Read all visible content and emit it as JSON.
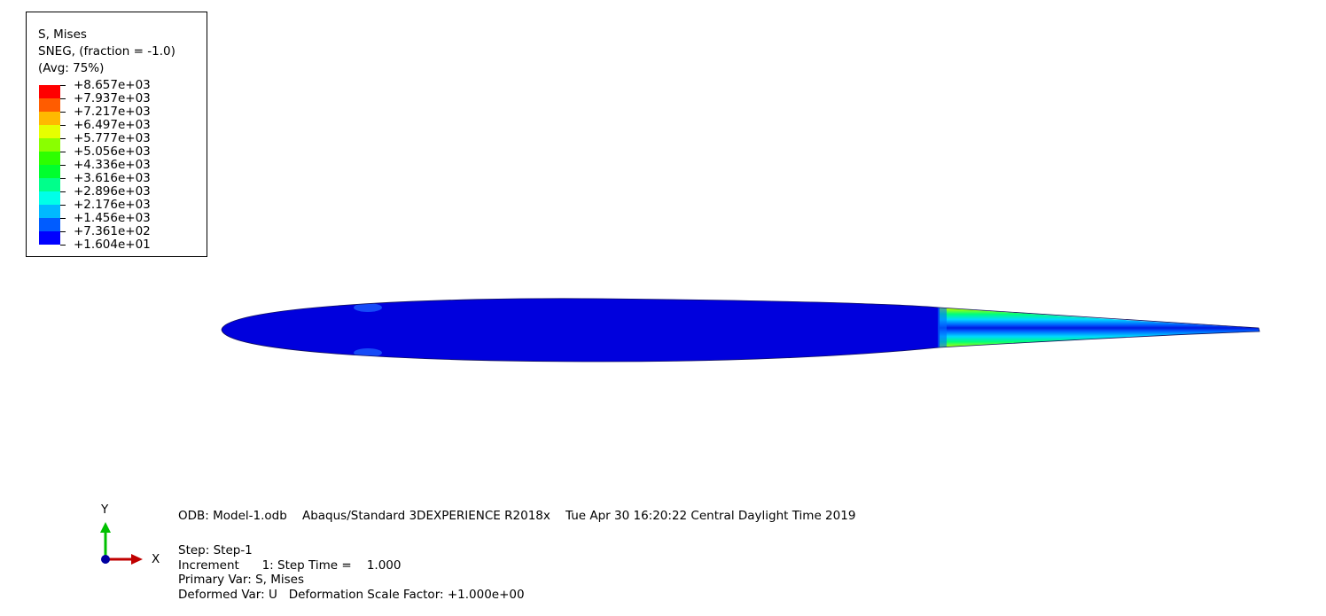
{
  "legend": {
    "title_lines": [
      "S, Mises",
      "SNEG, (fraction = -1.0)",
      "(Avg: 75%)"
    ],
    "levels": [
      "+8.657e+03",
      "+7.937e+03",
      "+7.217e+03",
      "+6.497e+03",
      "+5.777e+03",
      "+5.056e+03",
      "+4.336e+03",
      "+3.616e+03",
      "+2.896e+03",
      "+2.176e+03",
      "+1.456e+03",
      "+7.361e+02",
      "+1.604e+01"
    ],
    "colors": [
      "#ff0000",
      "#ff5c00",
      "#ffb900",
      "#e6ff00",
      "#8aff00",
      "#2dff00",
      "#00ff2e",
      "#00ff8b",
      "#00ffe8",
      "#00b9ff",
      "#005cff",
      "#0000ff"
    ]
  },
  "triad": {
    "y_label": "Y",
    "x_label": "X",
    "y_color": "#00c000",
    "x_color": "#c00000",
    "origin_color": "#0000a0"
  },
  "info": {
    "line1": "ODB: Model-1.odb    Abaqus/Standard 3DEXPERIENCE R2018x    Tue Apr 30 16:20:22 Central Daylight Time 2019",
    "step": "Step: Step-1",
    "increment": "Increment      1: Step Time =    1.000",
    "primary_var": "Primary Var: S, Mises",
    "deformed_var": "Deformed Var: U   Deformation Scale Factor: +1.000e+00"
  },
  "model": {
    "body_color": "#0000dd"
  }
}
